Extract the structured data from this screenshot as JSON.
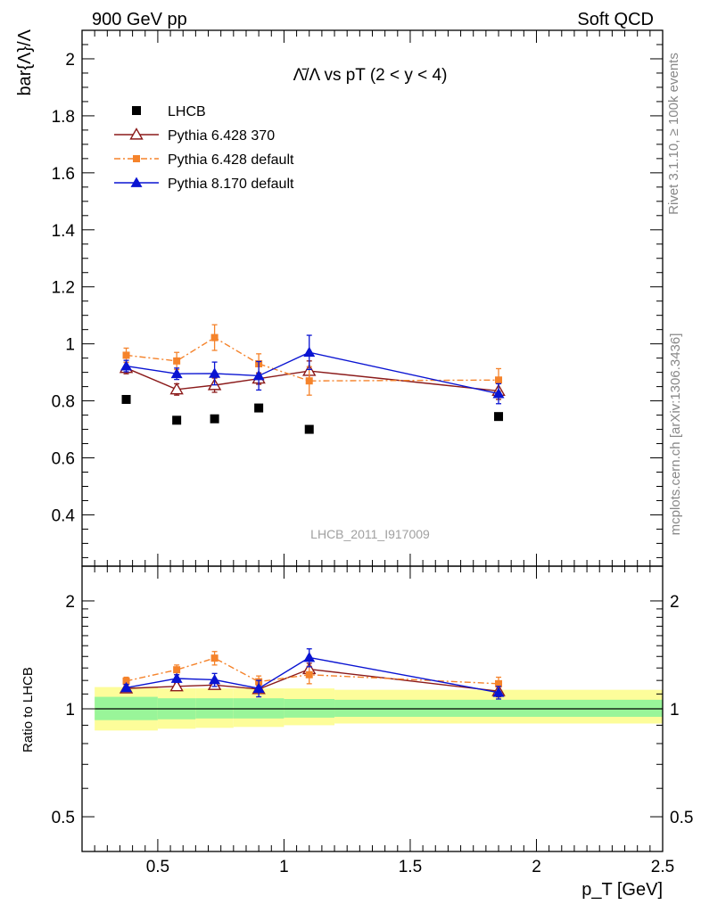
{
  "header": {
    "left": "900 GeV pp",
    "right": "Soft QCD"
  },
  "side_labels": {
    "rivet": "Rivet 3.1.10, ≥ 100k events",
    "mcplots": "mcplots.cern.ch [arXiv:1306.3436]"
  },
  "colors": {
    "lhcb": "#000000",
    "pythia6_370": "#8b1a1a",
    "pythia6_default": "#f5832b",
    "pythia8": "#0a14d2",
    "band_inner": "#99f599",
    "band_outer": "#fdfd9a"
  },
  "chart_data": [
    {
      "type": "scatter",
      "title": "Λ̄/Λ vs pT (2 < y < 4)",
      "ylabel": "bar{Λ}/Λ",
      "xlabel": "",
      "xlim": [
        0.2,
        2.5
      ],
      "ylim": [
        0.22,
        2.1
      ],
      "yticks": [
        0.4,
        0.6,
        0.8,
        1,
        1.2,
        1.4,
        1.6,
        1.8,
        2
      ],
      "ytick_labels": [
        "0.4",
        "0.6",
        "0.8",
        "1",
        "1.2",
        "1.4",
        "1.6",
        "1.8",
        "2"
      ],
      "legend_position": "top-left",
      "watermark": "LHCB_2011_I917009",
      "x": [
        0.375,
        0.575,
        0.725,
        0.9,
        1.1,
        1.85
      ],
      "series": [
        {
          "name": "LHCB",
          "marker": "square",
          "y": [
            0.805,
            0.732,
            0.737,
            0.775,
            0.7,
            0.745
          ]
        },
        {
          "name": "Pythia 6.428 370",
          "marker": "open-triangle",
          "y": [
            0.915,
            0.84,
            0.855,
            0.878,
            0.905,
            0.835
          ],
          "err": [
            0.02,
            0.02,
            0.025,
            0.02,
            0.035,
            0.03
          ]
        },
        {
          "name": "Pythia 6.428 default",
          "marker": "small-square",
          "y": [
            0.96,
            0.94,
            1.022,
            0.93,
            0.87,
            0.873
          ],
          "err": [
            0.025,
            0.03,
            0.045,
            0.035,
            0.05,
            0.04
          ]
        },
        {
          "name": "Pythia 8.170 default",
          "marker": "triangle",
          "y": [
            0.922,
            0.895,
            0.896,
            0.888,
            0.97,
            0.825
          ],
          "err": [
            0.02,
            0.02,
            0.04,
            0.05,
            0.06,
            0.035
          ]
        }
      ]
    },
    {
      "type": "scatter",
      "title": "",
      "ylabel": "Ratio to LHCB",
      "xlabel": "p_T [GeV]",
      "xlim": [
        0.2,
        2.5
      ],
      "ylim": [
        0.4,
        2.5
      ],
      "log_y": true,
      "yticks": [
        0.5,
        1,
        2
      ],
      "ytick_labels": [
        "0.5",
        "1",
        "2"
      ],
      "xticks": [
        0.5,
        1,
        1.5,
        2,
        2.5
      ],
      "xtick_labels": [
        "0.5",
        "1",
        "1.5",
        "2",
        "2.5"
      ],
      "x": [
        0.375,
        0.575,
        0.725,
        0.9,
        1.1,
        1.85
      ],
      "bands": {
        "edges": [
          0.25,
          0.5,
          0.65,
          0.8,
          1.0,
          1.2,
          2.5
        ],
        "inner": [
          [
            0.93,
            1.08
          ],
          [
            0.935,
            1.07
          ],
          [
            0.94,
            1.07
          ],
          [
            0.94,
            1.07
          ],
          [
            0.945,
            1.065
          ],
          [
            0.95,
            1.06
          ]
        ],
        "outer": [
          [
            0.87,
            1.15
          ],
          [
            0.88,
            1.14
          ],
          [
            0.885,
            1.14
          ],
          [
            0.89,
            1.14
          ],
          [
            0.9,
            1.14
          ],
          [
            0.91,
            1.13
          ]
        ]
      },
      "series": [
        {
          "name": "Pythia 6.428 370",
          "marker": "open-triangle",
          "y": [
            1.14,
            1.155,
            1.165,
            1.135,
            1.29,
            1.12
          ],
          "err": [
            0.025,
            0.025,
            0.03,
            0.03,
            0.05,
            0.04
          ]
        },
        {
          "name": "Pythia 6.428 default",
          "marker": "small-square",
          "y": [
            1.195,
            1.285,
            1.385,
            1.19,
            1.245,
            1.175
          ],
          "err": [
            0.03,
            0.04,
            0.06,
            0.045,
            0.07,
            0.05
          ]
        },
        {
          "name": "Pythia 8.170 default",
          "marker": "triangle",
          "y": [
            1.145,
            1.215,
            1.205,
            1.14,
            1.39,
            1.11
          ],
          "err": [
            0.025,
            0.03,
            0.05,
            0.06,
            0.08,
            0.045
          ]
        }
      ]
    }
  ]
}
